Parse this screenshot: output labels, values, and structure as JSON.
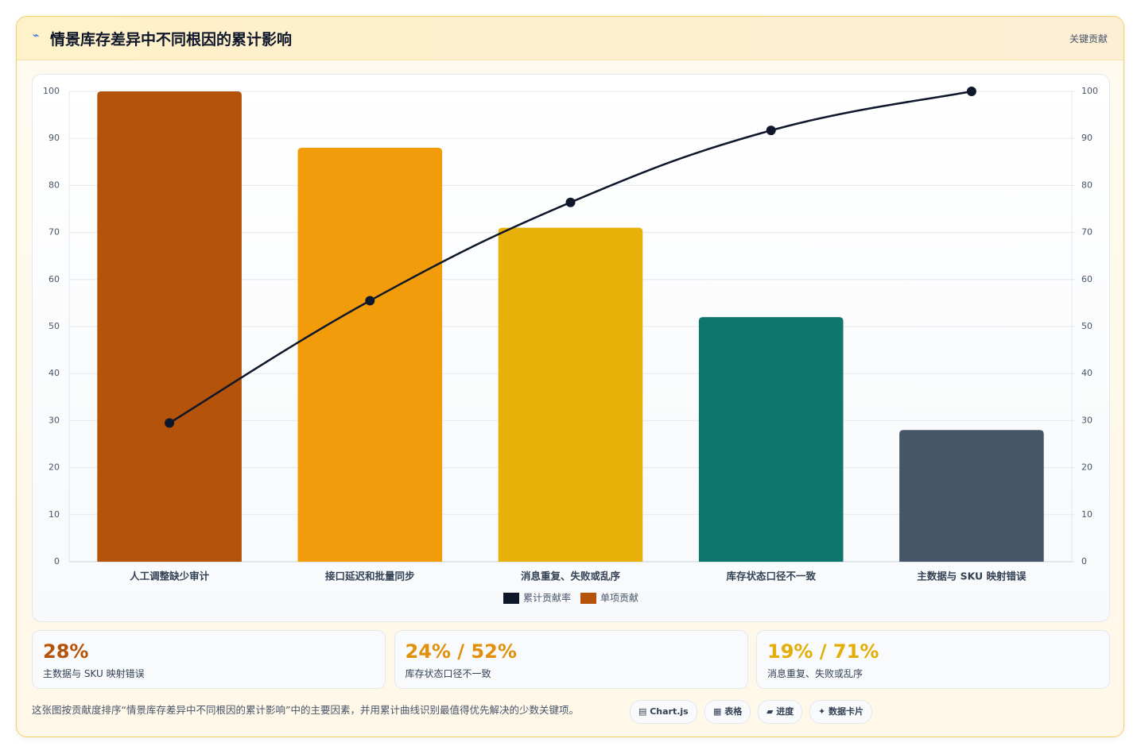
{
  "header": {
    "icon": "⌁",
    "title": "情景库存差异中不同根因的累计影响",
    "badge": "关键贡献"
  },
  "chart_data": {
    "type": "bar",
    "categories": [
      "人工调整缺少审计",
      "接口延迟和批量同步",
      "消息重复、失败或乱序",
      "库存状态口径不一致",
      "主数据与 SKU 映射错误"
    ],
    "series": [
      {
        "name": "累计贡献率",
        "type": "line",
        "color": "#0f172a",
        "axis": "y2",
        "values": [
          29.5,
          55.5,
          76.4,
          91.7,
          100
        ]
      },
      {
        "name": "单项贡献",
        "type": "bar",
        "color": "#b45309",
        "colors": [
          "#b45309",
          "#f39c0b",
          "#e8b10a",
          "#0f766e",
          "#475569"
        ],
        "values": [
          100,
          88,
          71,
          52,
          28
        ]
      }
    ],
    "ylim": [
      0,
      100
    ],
    "yticks": [
      0,
      10,
      20,
      30,
      40,
      50,
      60,
      70,
      80,
      90,
      100
    ],
    "y2lim": [
      0,
      100
    ],
    "y2ticks": [
      0,
      10,
      20,
      30,
      40,
      50,
      60,
      70,
      80,
      90,
      100
    ],
    "grid": true
  },
  "cards": [
    {
      "value": "28%",
      "label": "主数据与 SKU 映射错误",
      "color": "#b45309"
    },
    {
      "value": "24% / 52%",
      "label": "库存状态口径不一致",
      "color": "#e0900a"
    },
    {
      "value": "19% / 71%",
      "label": "消息重复、失败或乱序",
      "color": "#e3ae0a"
    }
  ],
  "footer": {
    "text": "这张图按贡献度排序“情景库存差异中不同根因的累计影响”中的主要因素，并用累计曲线识别最值得优先解决的少数关键项。",
    "tags": [
      "▤ Chart.js",
      "▦ 表格",
      "▰ 进度",
      "✦ 数据卡片"
    ]
  }
}
